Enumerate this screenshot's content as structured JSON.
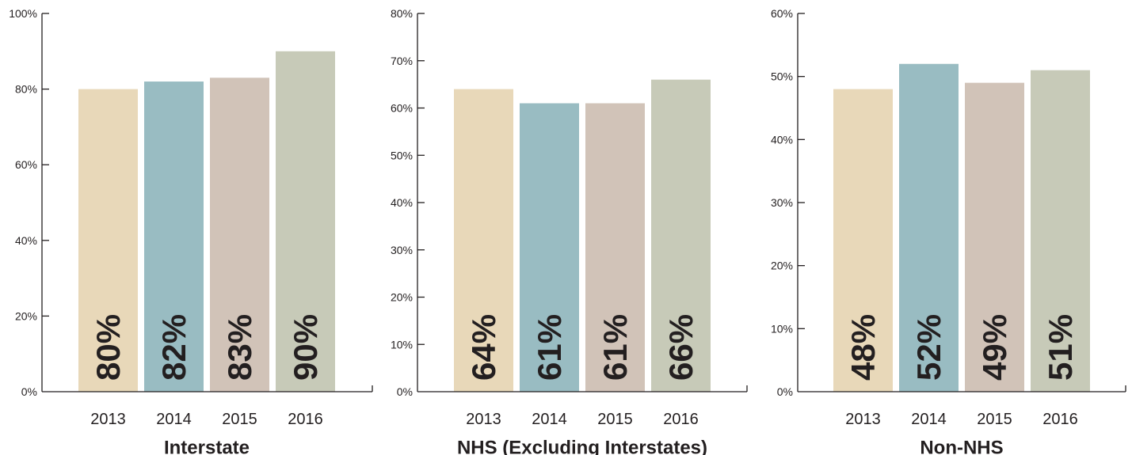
{
  "colors": {
    "2013": "#e8d8b9",
    "2014": "#99bcc2",
    "2015": "#d1c3b8",
    "2016": "#c7cab8",
    "axis": "#231f20",
    "text": "#231f20"
  },
  "chart_data": [
    {
      "type": "bar",
      "title": "Interstate",
      "categories": [
        "2013",
        "2014",
        "2015",
        "2016"
      ],
      "values": [
        80,
        82,
        83,
        90
      ],
      "data_labels": [
        "80%",
        "82%",
        "83%",
        "90%"
      ],
      "ylim": [
        0,
        100
      ],
      "yticks": [
        0,
        20,
        40,
        60,
        80,
        100
      ],
      "ytick_labels": [
        "0%",
        "20%",
        "40%",
        "60%",
        "80%",
        "100%"
      ],
      "grid": false,
      "legend": "none"
    },
    {
      "type": "bar",
      "title": "NHS (Excluding Interstates)",
      "categories": [
        "2013",
        "2014",
        "2015",
        "2016"
      ],
      "values": [
        64,
        61,
        61,
        66
      ],
      "data_labels": [
        "64%",
        "61%",
        "61%",
        "66%"
      ],
      "ylim": [
        0,
        80
      ],
      "yticks": [
        0,
        10,
        20,
        30,
        40,
        50,
        60,
        70,
        80
      ],
      "ytick_labels": [
        "0%",
        "10%",
        "20%",
        "30%",
        "40%",
        "50%",
        "60%",
        "70%",
        "80%"
      ],
      "grid": false,
      "legend": "none"
    },
    {
      "type": "bar",
      "title": "Non-NHS",
      "categories": [
        "2013",
        "2014",
        "2015",
        "2016"
      ],
      "values": [
        48,
        52,
        49,
        51
      ],
      "data_labels": [
        "48%",
        "52%",
        "49%",
        "51%"
      ],
      "ylim": [
        0,
        60
      ],
      "yticks": [
        0,
        10,
        20,
        30,
        40,
        50,
        60
      ],
      "ytick_labels": [
        "0%",
        "10%",
        "20%",
        "30%",
        "40%",
        "50%",
        "60%"
      ],
      "grid": false,
      "legend": "none"
    }
  ]
}
